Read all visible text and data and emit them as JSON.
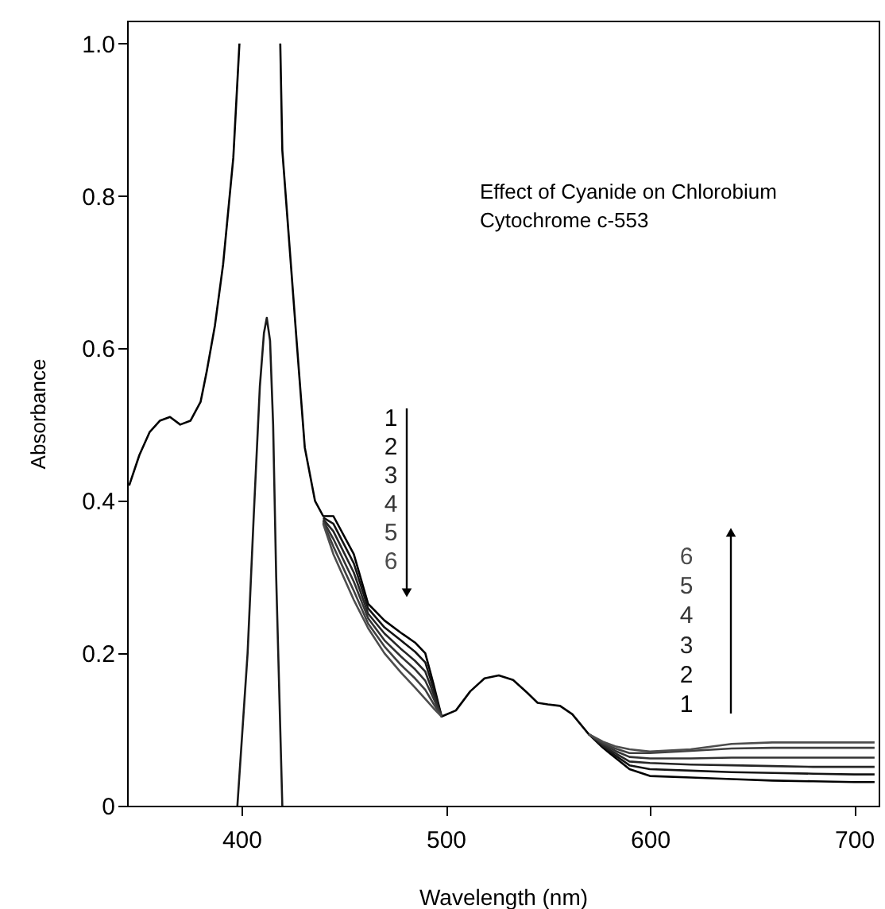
{
  "chart_data": {
    "type": "line",
    "title": "Effect of Cyanide on Chlorobium Cytochrome c-553",
    "xlabel": "Wavelength (nm)",
    "ylabel": "Absorbance",
    "x": [
      345,
      350,
      355,
      360,
      365,
      370,
      375,
      380,
      383,
      387,
      391,
      396,
      399,
      410,
      419,
      420,
      427,
      431,
      436,
      440,
      445,
      455,
      462,
      470,
      478,
      485,
      490,
      494,
      498,
      505,
      512,
      519,
      526,
      533,
      540,
      545,
      550,
      556,
      562,
      570,
      577,
      583,
      590,
      600,
      620,
      640,
      660,
      680,
      700,
      710
    ],
    "series": [
      {
        "name": "1",
        "color": "#000000",
        "values": [
          0.42,
          0.46,
          0.49,
          0.505,
          0.51,
          0.5,
          0.505,
          0.53,
          0.57,
          0.63,
          0.71,
          0.85,
          1.0,
          null,
          1.0,
          0.86,
          0.61,
          0.47,
          0.4,
          0.38,
          0.38,
          0.33,
          0.265,
          0.243,
          0.227,
          0.214,
          0.2,
          0.16,
          0.117,
          0.125,
          0.15,
          0.167,
          0.171,
          0.165,
          0.148,
          0.135,
          0.133,
          0.131,
          0.12,
          0.094,
          0.076,
          0.063,
          0.048,
          0.039,
          0.037,
          0.035,
          0.033,
          0.032,
          0.031,
          0.031
        ]
      },
      {
        "name": "2",
        "color": "#141414",
        "values": [
          null,
          null,
          null,
          null,
          null,
          null,
          null,
          null,
          null,
          null,
          null,
          null,
          null,
          null,
          null,
          null,
          null,
          null,
          null,
          0.378,
          0.37,
          0.318,
          0.259,
          0.234,
          0.217,
          0.202,
          0.188,
          0.154,
          0.117,
          null,
          null,
          null,
          null,
          null,
          null,
          null,
          null,
          null,
          null,
          0.094,
          0.078,
          0.066,
          0.053,
          0.048,
          0.046,
          0.044,
          0.043,
          0.042,
          0.041,
          0.041
        ]
      },
      {
        "name": "3",
        "color": "#262626",
        "values": [
          null,
          null,
          null,
          null,
          null,
          null,
          null,
          null,
          null,
          null,
          null,
          null,
          null,
          null,
          null,
          null,
          null,
          null,
          null,
          0.376,
          0.36,
          0.306,
          0.252,
          0.226,
          0.206,
          0.19,
          0.176,
          0.147,
          0.117,
          null,
          null,
          null,
          null,
          null,
          null,
          null,
          null,
          null,
          null,
          0.094,
          0.079,
          0.069,
          0.058,
          0.056,
          0.054,
          0.053,
          0.052,
          0.051,
          0.051,
          0.051
        ]
      },
      {
        "name": "4",
        "color": "#333333",
        "values": [
          null,
          null,
          null,
          null,
          null,
          null,
          null,
          null,
          null,
          null,
          null,
          null,
          null,
          null,
          null,
          null,
          null,
          null,
          null,
          0.374,
          0.35,
          0.294,
          0.246,
          0.217,
          0.196,
          0.179,
          0.164,
          0.141,
          0.117,
          null,
          null,
          null,
          null,
          null,
          null,
          null,
          null,
          null,
          null,
          0.094,
          0.081,
          0.072,
          0.064,
          0.062,
          0.062,
          0.063,
          0.063,
          0.063,
          0.063,
          0.063
        ]
      },
      {
        "name": "5",
        "color": "#404040",
        "values": [
          null,
          null,
          null,
          null,
          null,
          null,
          null,
          null,
          null,
          null,
          null,
          null,
          null,
          null,
          null,
          null,
          null,
          null,
          null,
          0.372,
          0.34,
          0.282,
          0.239,
          0.209,
          0.185,
          0.167,
          0.152,
          0.134,
          0.117,
          null,
          null,
          null,
          null,
          null,
          null,
          null,
          null,
          null,
          null,
          0.094,
          0.082,
          0.075,
          0.069,
          0.069,
          0.072,
          0.075,
          0.076,
          0.076,
          0.076,
          0.076
        ]
      },
      {
        "name": "6",
        "color": "#4d4d4d",
        "values": [
          null,
          null,
          null,
          null,
          null,
          null,
          null,
          null,
          null,
          null,
          null,
          null,
          null,
          null,
          null,
          null,
          null,
          null,
          null,
          0.37,
          0.33,
          0.27,
          0.233,
          0.2,
          0.175,
          0.155,
          0.14,
          0.128,
          0.117,
          null,
          null,
          null,
          null,
          null,
          null,
          null,
          null,
          null,
          null,
          0.094,
          0.084,
          0.078,
          0.074,
          0.071,
          0.074,
          0.081,
          0.083,
          0.083,
          0.083,
          0.083
        ]
      },
      {
        "color": "#1a1a1a",
        "x": [
          398,
          403,
          406,
          409,
          411,
          412.4,
          414,
          415.5,
          417,
          420
        ],
        "values": [
          0,
          0.2,
          0.38,
          0.55,
          0.62,
          0.64,
          0.61,
          0.5,
          0.3,
          0
        ]
      }
    ],
    "xlim": [
      344,
      712
    ],
    "xticks": [
      400,
      500,
      600,
      700
    ],
    "ylim": [
      0,
      1.03
    ],
    "yticks": [
      {
        "value": 0,
        "label": "0"
      },
      0.2,
      0.4,
      0.6,
      0.8,
      {
        "value": 1,
        "label": "1.0"
      }
    ],
    "grid": false,
    "legend": "right",
    "line_style": "solid"
  }
}
